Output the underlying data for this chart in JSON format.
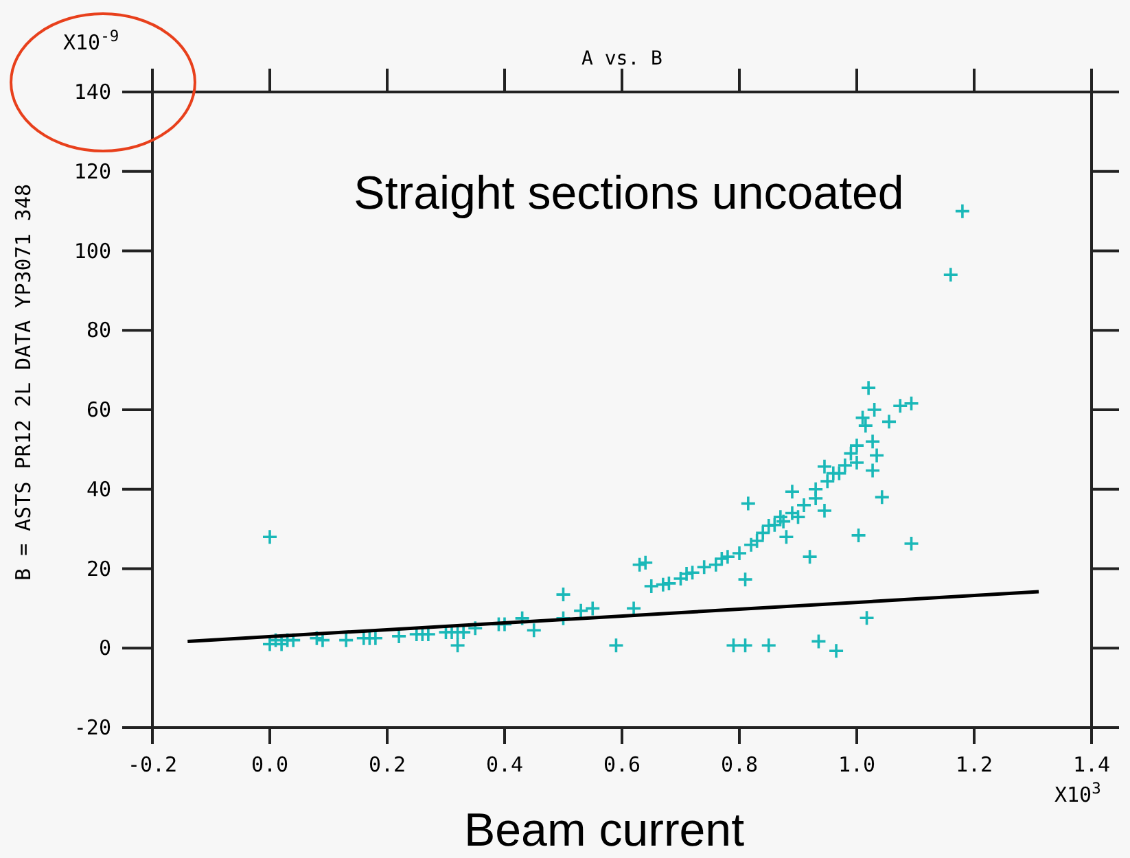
{
  "chart_data": {
    "type": "scatter",
    "title": "A vs. B",
    "xlabel": "Beam current",
    "ylabel": "B = ASTS PR12 2L DATA YP3071 348",
    "annotations": [
      "Straight sections uncoated",
      "X10$^{-9}$",
      "X10$^{3}$"
    ],
    "xlim": [
      -0.2,
      1.4
    ],
    "ylim": [
      -20,
      140
    ],
    "xticks": [
      {
        "value": -0.2,
        "label": "-0.2"
      },
      {
        "value": 0,
        "label": "0.0"
      },
      {
        "value": 0.2,
        "label": "0.2"
      },
      {
        "value": 0.4,
        "label": "0.4"
      },
      {
        "value": 0.6,
        "label": "0.6"
      },
      {
        "value": 0.8,
        "label": "0.8"
      },
      {
        "value": 1,
        "label": "1.0"
      },
      {
        "value": 1.2,
        "label": "1.2"
      },
      {
        "value": 1.4,
        "label": "1.4"
      }
    ],
    "yticks": [
      -20,
      0,
      20,
      40,
      60,
      80,
      100,
      120,
      140
    ],
    "marker": "cross",
    "series": [
      {
        "color": "#1ab8b8",
        "x": [
          0,
          0,
          0.01,
          0.02,
          0.03,
          0.04,
          0.08,
          0.09,
          0.13,
          0.16,
          0.17,
          0.18,
          0.22,
          0.25,
          0.26,
          0.27,
          0.3,
          0.31,
          0.32,
          0.32,
          0.33,
          0.35,
          0.39,
          0.4,
          0.43,
          0.45,
          0.5,
          0.5,
          0.53,
          0.55,
          0.59,
          0.62,
          0.63,
          0.64,
          0.65,
          0.67,
          0.68,
          0.7,
          0.71,
          0.72,
          0.74,
          0.76,
          0.77,
          0.78,
          0.79,
          0.8,
          0.81,
          0.81,
          0.815,
          0.82,
          0.83,
          0.84,
          0.85,
          0.85,
          0.86,
          0.87,
          0.875,
          0.88,
          0.89,
          0.89,
          0.9,
          0.91,
          0.92,
          0.93,
          0.93,
          0.935,
          0.945,
          0.945,
          0.95,
          0.96,
          0.965,
          0.97,
          0.98,
          0.99,
          1,
          1,
          1.003,
          1.01,
          1.015,
          1.017,
          1.02,
          1.027,
          1.027,
          1.03,
          1.034,
          1.043,
          1.055,
          1.074,
          1.093,
          1.093,
          1.16,
          1.18
        ],
        "values": [
          28,
          1,
          2,
          1,
          2,
          2,
          2.5,
          2,
          2,
          2.5,
          2.5,
          2.5,
          3,
          3.5,
          3.5,
          3.5,
          4,
          4,
          0.7,
          4,
          4,
          5,
          6,
          6,
          7.5,
          4.5,
          13.5,
          7.5,
          9.4,
          10,
          0.7,
          10,
          21,
          21.5,
          15.6,
          16,
          16.3,
          17.5,
          18.7,
          19,
          20.4,
          21,
          22.5,
          23,
          0.7,
          23.9,
          17.3,
          0.7,
          36.4,
          26,
          27,
          29,
          30.8,
          0.7,
          31,
          33,
          31.9,
          28,
          39.4,
          34,
          33,
          36,
          23,
          37.7,
          40,
          1.7,
          45.7,
          34.6,
          42,
          44,
          -0.7,
          44,
          46,
          49,
          46.7,
          51,
          28.4,
          58,
          56,
          7.6,
          65.5,
          52,
          44.7,
          60,
          48.5,
          38,
          57,
          61,
          61.6,
          26.3,
          94,
          110
        ]
      },
      {
        "type": "line",
        "color": "#000000",
        "marker": "none",
        "x": [
          -0.14,
          1.31
        ],
        "values": [
          1.7,
          14.2
        ]
      }
    ]
  }
}
